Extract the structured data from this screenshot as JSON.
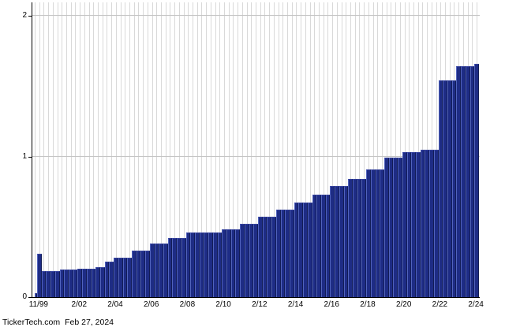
{
  "footer": {
    "source": "TickerTech.com",
    "date": "Feb 27, 2024"
  },
  "chart_data": {
    "type": "bar",
    "title": "",
    "xlabel": "",
    "ylabel": "",
    "ylim": [
      0,
      2
    ],
    "grid": true,
    "legend": "none",
    "colors": {
      "bar_fill": "#1e2c85",
      "bar_bevel_left": "#5163bd",
      "bar_bevel_right": "#121c55",
      "bar_bevel_top": "#36429e",
      "vgrid": "#d9d9d9",
      "hgrid": "#c4c4c4",
      "axis": "#000000",
      "text": "#000000",
      "background": "#ffffff"
    },
    "y_ticks": [
      {
        "v": 0,
        "label": "0"
      },
      {
        "v": 1,
        "label": "1"
      },
      {
        "v": 2,
        "label": "2"
      }
    ],
    "x_tick_labels": [
      "11/99",
      "2/02",
      "2/04",
      "2/06",
      "2/08",
      "2/10",
      "2/12",
      "2/14",
      "2/16",
      "2/18",
      "2/20",
      "2/22",
      "2/24"
    ],
    "bars": [
      {
        "q": "",
        "v": 0.03
      },
      {
        "q": "11/99",
        "v": 0.31,
        "t": true
      },
      {
        "q": "2/00",
        "v": 0.185
      },
      {
        "q": "5/00",
        "v": 0.185
      },
      {
        "q": "8/00",
        "v": 0.185
      },
      {
        "q": "11/00",
        "v": 0.185
      },
      {
        "q": "2/01",
        "v": 0.195
      },
      {
        "q": "5/01",
        "v": 0.195
      },
      {
        "q": "8/01",
        "v": 0.195
      },
      {
        "q": "11/01",
        "v": 0.195
      },
      {
        "q": "2/02",
        "v": 0.2,
        "t": true
      },
      {
        "q": "5/02",
        "v": 0.2
      },
      {
        "q": "8/02",
        "v": 0.2
      },
      {
        "q": "11/02",
        "v": 0.2
      },
      {
        "q": "2/03",
        "v": 0.215
      },
      {
        "q": "5/03",
        "v": 0.215
      },
      {
        "q": "8/03",
        "v": 0.25
      },
      {
        "q": "11/03",
        "v": 0.25
      },
      {
        "q": "2/04",
        "v": 0.28,
        "t": true
      },
      {
        "q": "5/04",
        "v": 0.28
      },
      {
        "q": "8/04",
        "v": 0.28
      },
      {
        "q": "11/04",
        "v": 0.28
      },
      {
        "q": "2/05",
        "v": 0.33
      },
      {
        "q": "5/05",
        "v": 0.33
      },
      {
        "q": "8/05",
        "v": 0.33
      },
      {
        "q": "11/05",
        "v": 0.33
      },
      {
        "q": "2/06",
        "v": 0.38,
        "t": true
      },
      {
        "q": "5/06",
        "v": 0.38
      },
      {
        "q": "8/06",
        "v": 0.38
      },
      {
        "q": "11/06",
        "v": 0.38
      },
      {
        "q": "2/07",
        "v": 0.42
      },
      {
        "q": "5/07",
        "v": 0.42
      },
      {
        "q": "8/07",
        "v": 0.42
      },
      {
        "q": "11/07",
        "v": 0.42
      },
      {
        "q": "2/08",
        "v": 0.46,
        "t": true
      },
      {
        "q": "5/08",
        "v": 0.46
      },
      {
        "q": "8/08",
        "v": 0.46
      },
      {
        "q": "11/08",
        "v": 0.46
      },
      {
        "q": "2/09",
        "v": 0.46
      },
      {
        "q": "5/09",
        "v": 0.46
      },
      {
        "q": "8/09",
        "v": 0.46
      },
      {
        "q": "11/09",
        "v": 0.46
      },
      {
        "q": "2/10",
        "v": 0.48,
        "t": true
      },
      {
        "q": "5/10",
        "v": 0.48
      },
      {
        "q": "8/10",
        "v": 0.48
      },
      {
        "q": "11/10",
        "v": 0.48
      },
      {
        "q": "2/11",
        "v": 0.52
      },
      {
        "q": "5/11",
        "v": 0.52
      },
      {
        "q": "8/11",
        "v": 0.52
      },
      {
        "q": "11/11",
        "v": 0.52
      },
      {
        "q": "2/12",
        "v": 0.57,
        "t": true
      },
      {
        "q": "5/12",
        "v": 0.57
      },
      {
        "q": "8/12",
        "v": 0.57
      },
      {
        "q": "11/12",
        "v": 0.57
      },
      {
        "q": "2/13",
        "v": 0.62
      },
      {
        "q": "5/13",
        "v": 0.62
      },
      {
        "q": "8/13",
        "v": 0.62
      },
      {
        "q": "11/13",
        "v": 0.62
      },
      {
        "q": "2/14",
        "v": 0.67,
        "t": true
      },
      {
        "q": "5/14",
        "v": 0.67
      },
      {
        "q": "8/14",
        "v": 0.67
      },
      {
        "q": "11/14",
        "v": 0.67
      },
      {
        "q": "2/15",
        "v": 0.73
      },
      {
        "q": "5/15",
        "v": 0.73
      },
      {
        "q": "8/15",
        "v": 0.73
      },
      {
        "q": "11/15",
        "v": 0.73
      },
      {
        "q": "2/16",
        "v": 0.79,
        "t": true
      },
      {
        "q": "5/16",
        "v": 0.79
      },
      {
        "q": "8/16",
        "v": 0.79
      },
      {
        "q": "11/16",
        "v": 0.79
      },
      {
        "q": "2/17",
        "v": 0.84
      },
      {
        "q": "5/17",
        "v": 0.84
      },
      {
        "q": "8/17",
        "v": 0.84
      },
      {
        "q": "11/17",
        "v": 0.84
      },
      {
        "q": "2/18",
        "v": 0.91,
        "t": true
      },
      {
        "q": "5/18",
        "v": 0.91
      },
      {
        "q": "8/18",
        "v": 0.91
      },
      {
        "q": "11/18",
        "v": 0.91
      },
      {
        "q": "2/19",
        "v": 0.99
      },
      {
        "q": "5/19",
        "v": 0.99
      },
      {
        "q": "8/19",
        "v": 0.99
      },
      {
        "q": "11/19",
        "v": 0.99
      },
      {
        "q": "2/20",
        "v": 1.03,
        "t": true
      },
      {
        "q": "5/20",
        "v": 1.03
      },
      {
        "q": "8/20",
        "v": 1.03
      },
      {
        "q": "11/20",
        "v": 1.03
      },
      {
        "q": "2/21",
        "v": 1.05
      },
      {
        "q": "5/21",
        "v": 1.05
      },
      {
        "q": "8/21",
        "v": 1.05
      },
      {
        "q": "11/21",
        "v": 1.05
      },
      {
        "q": "2/22",
        "v": 1.54,
        "t": true
      },
      {
        "q": "5/22",
        "v": 1.54
      },
      {
        "q": "8/22",
        "v": 1.54
      },
      {
        "q": "11/22",
        "v": 1.54
      },
      {
        "q": "2/23",
        "v": 1.64
      },
      {
        "q": "5/23",
        "v": 1.64
      },
      {
        "q": "8/23",
        "v": 1.64
      },
      {
        "q": "11/23",
        "v": 1.64
      },
      {
        "q": "2/24",
        "v": 1.66,
        "t": true
      }
    ]
  }
}
